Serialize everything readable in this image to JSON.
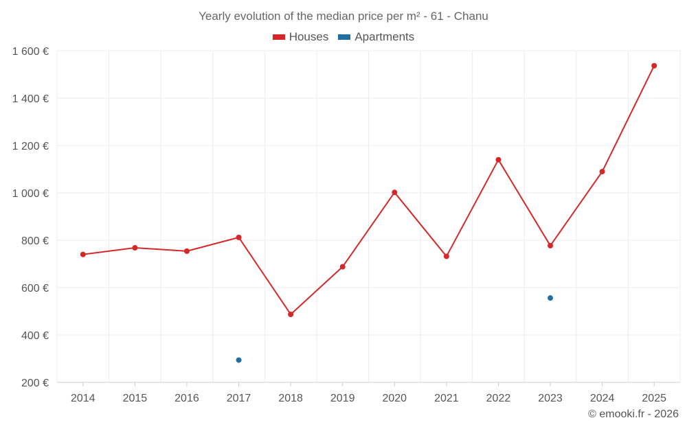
{
  "chart_data": {
    "type": "line",
    "title": "Yearly evolution of the median price per m² - 61 - Chanu",
    "categories": [
      "2014",
      "2015",
      "2016",
      "2017",
      "2018",
      "2019",
      "2020",
      "2021",
      "2022",
      "2023",
      "2024",
      "2025"
    ],
    "series": [
      {
        "name": "Houses",
        "color": "#d62728",
        "values": [
          740,
          768,
          754,
          812,
          487,
          688,
          1002,
          732,
          1140,
          777,
          1090,
          1537
        ]
      },
      {
        "name": "Apartments",
        "color": "#1f6fa3",
        "values": [
          null,
          null,
          null,
          294,
          null,
          null,
          null,
          null,
          null,
          556,
          null,
          null
        ]
      }
    ],
    "yticks": [
      200,
      400,
      600,
      800,
      1000,
      1200,
      1400,
      1600
    ],
    "ytick_labels": [
      "200 €",
      "400 €",
      "600 €",
      "800 €",
      "1 000 €",
      "1 200 €",
      "1 400 €",
      "1 600 €"
    ],
    "ylim": [
      200,
      1600
    ],
    "xlabel": "",
    "ylabel": "",
    "grid": true,
    "legend_position": "top-center"
  },
  "credit": "© emooki.fr - 2026"
}
